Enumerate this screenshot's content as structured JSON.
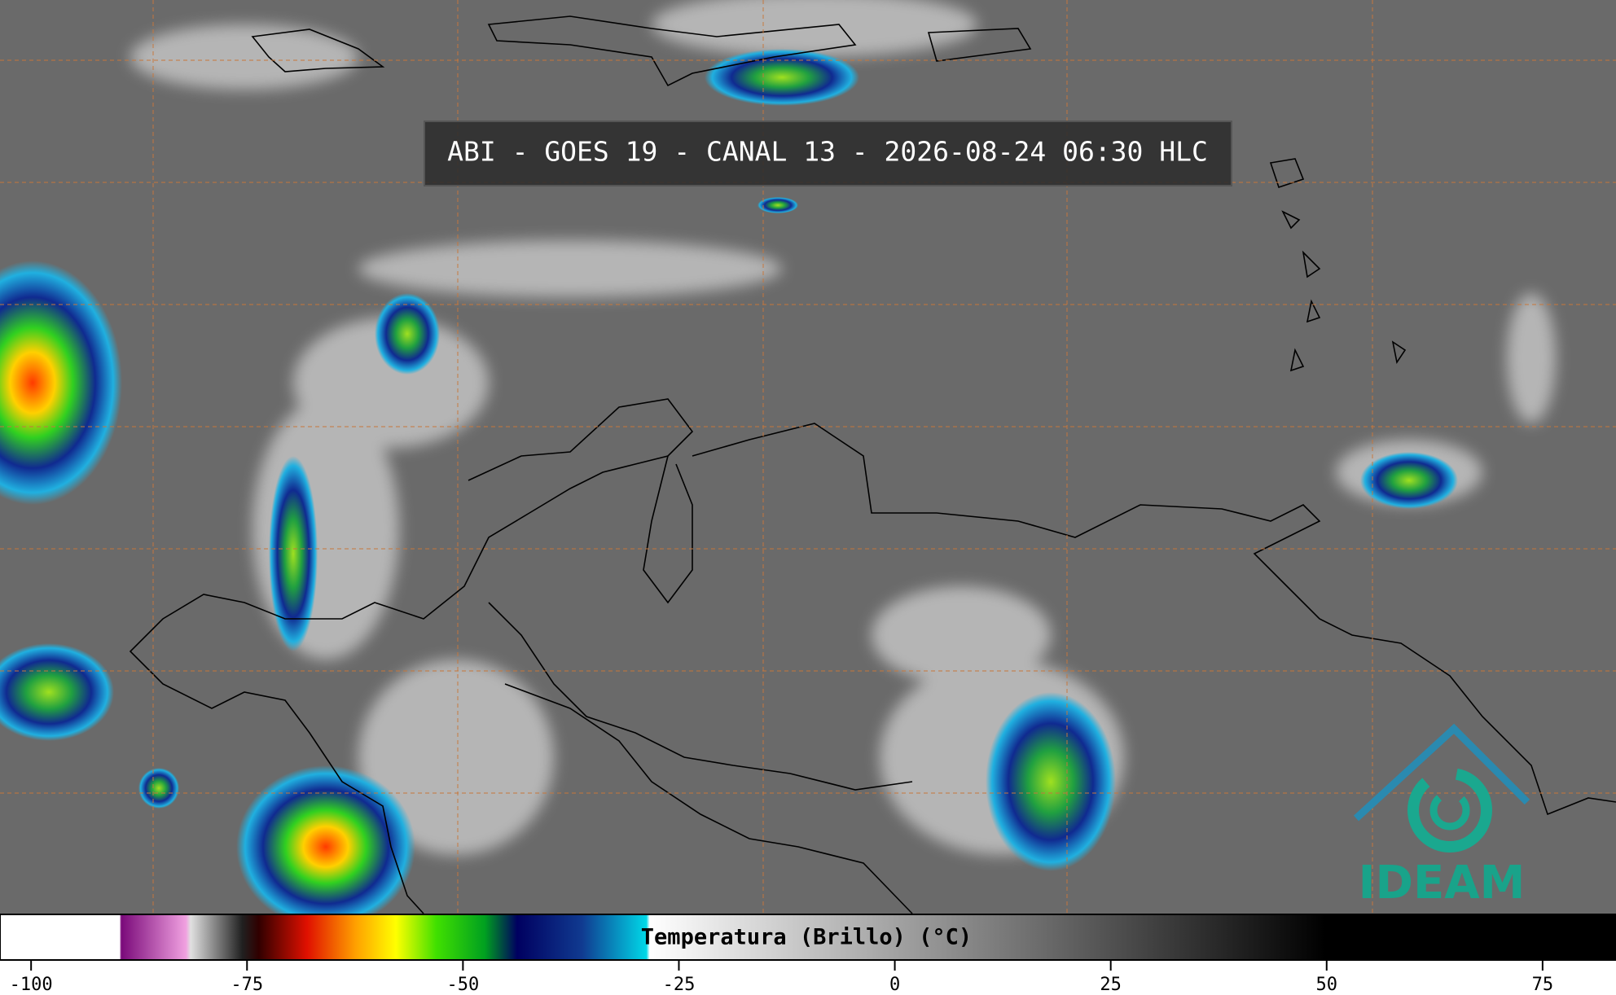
{
  "header": {
    "title": "ABI - GOES 19 - CANAL 13 - 2026-08-24 06:30 HLC"
  },
  "logo": {
    "text": "IDEAM"
  },
  "colorbar": {
    "label": "Temperatura (Brillo) (°C)",
    "lim": [
      -103.6,
      83.5
    ],
    "ticks": [
      -100,
      -75,
      -50,
      -25,
      0,
      25,
      50,
      75
    ]
  }
}
